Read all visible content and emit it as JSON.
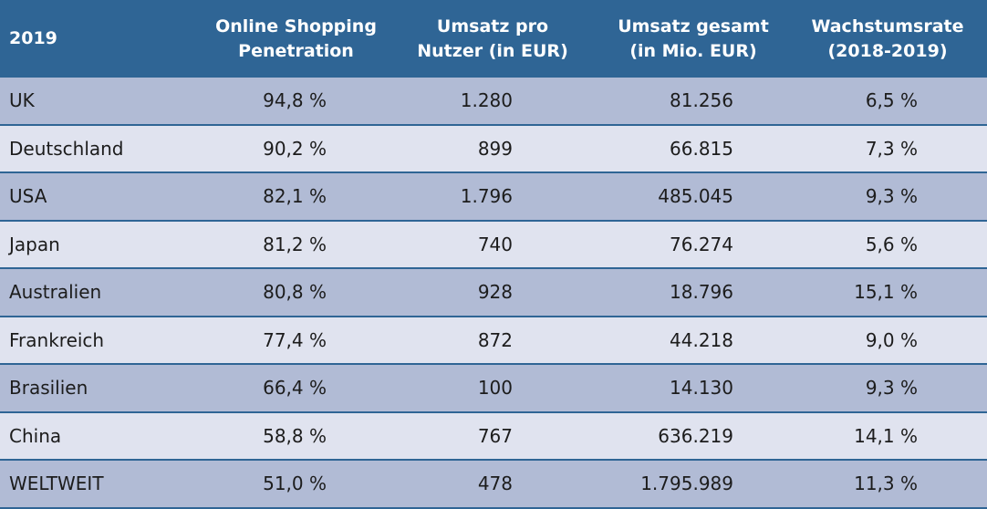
{
  "chart_data": {
    "type": "table",
    "header": {
      "year": "2019",
      "col1": [
        "Online Shopping",
        "Penetration"
      ],
      "col2": [
        "Umsatz pro",
        "Nutzer (in EUR)"
      ],
      "col3": [
        "Umsatz gesamt",
        "(in Mio. EUR)"
      ],
      "col4": [
        "Wachstumsrate",
        "(2018-2019)"
      ]
    },
    "rows": [
      {
        "name": "UK",
        "penetration": "94,8 %",
        "umsatz_pro_nutzer": "1.280",
        "umsatz_gesamt": "81.256",
        "wachstumsrate": "6,5 %"
      },
      {
        "name": "Deutschland",
        "penetration": "90,2 %",
        "umsatz_pro_nutzer": "899",
        "umsatz_gesamt": "66.815",
        "wachstumsrate": "7,3 %"
      },
      {
        "name": "USA",
        "penetration": "82,1 %",
        "umsatz_pro_nutzer": "1.796",
        "umsatz_gesamt": "485.045",
        "wachstumsrate": "9,3 %"
      },
      {
        "name": "Japan",
        "penetration": "81,2 %",
        "umsatz_pro_nutzer": "740",
        "umsatz_gesamt": "76.274",
        "wachstumsrate": "5,6 %"
      },
      {
        "name": "Australien",
        "penetration": "80,8 %",
        "umsatz_pro_nutzer": "928",
        "umsatz_gesamt": "18.796",
        "wachstumsrate": "15,1 %"
      },
      {
        "name": "Frankreich",
        "penetration": "77,4 %",
        "umsatz_pro_nutzer": "872",
        "umsatz_gesamt": "44.218",
        "wachstumsrate": "9,0 %"
      },
      {
        "name": "Brasilien",
        "penetration": "66,4 %",
        "umsatz_pro_nutzer": "100",
        "umsatz_gesamt": "14.130",
        "wachstumsrate": "9,3 %"
      },
      {
        "name": "China",
        "penetration": "58,8 %",
        "umsatz_pro_nutzer": "767",
        "umsatz_gesamt": "636.219",
        "wachstumsrate": "14,1 %"
      },
      {
        "name": "WELTWEIT",
        "penetration": "51,0 %",
        "umsatz_pro_nutzer": "478",
        "umsatz_gesamt": "1.795.989",
        "wachstumsrate": "11,3 %"
      }
    ]
  },
  "colors": {
    "header_bg": "#2f6595",
    "row_dark": "#b1bbd5",
    "row_light": "#e0e3ef",
    "divider": "#2f6595"
  }
}
